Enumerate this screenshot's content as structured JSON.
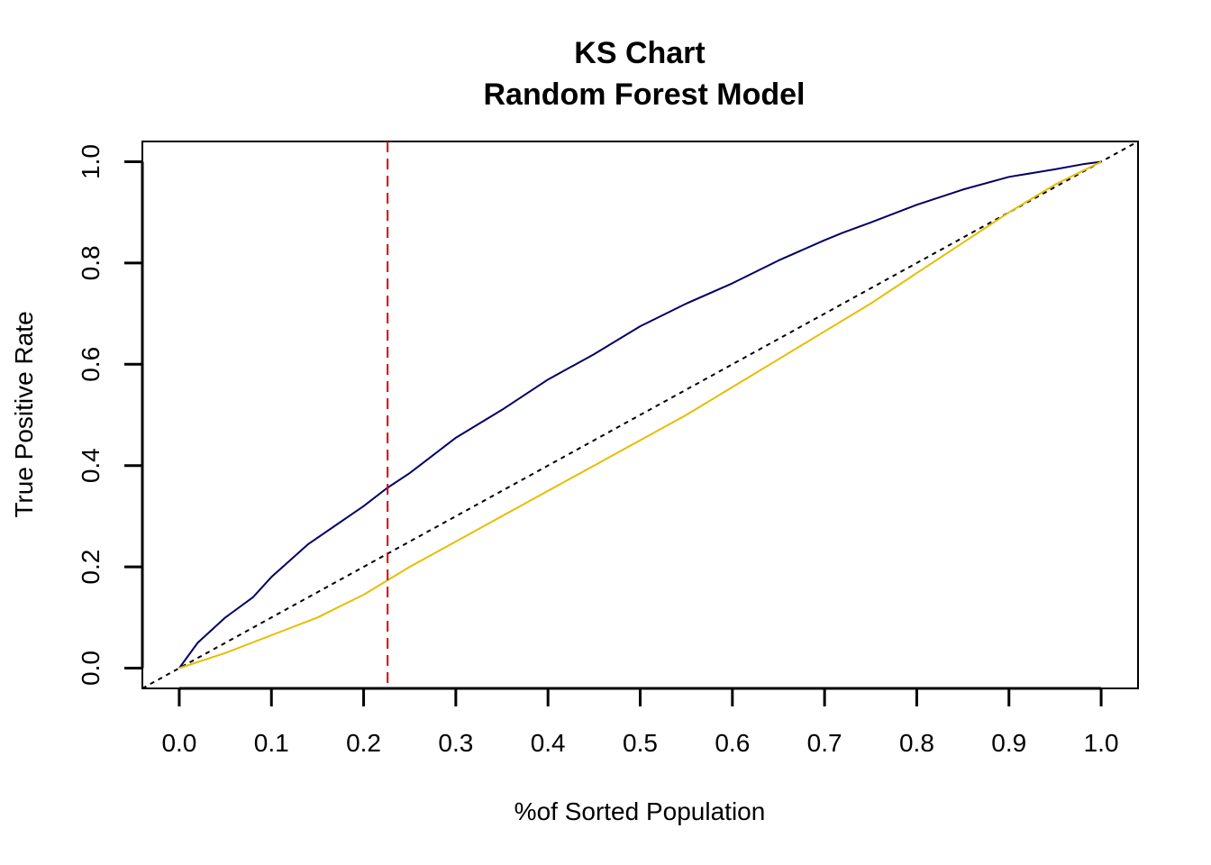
{
  "chart_data": {
    "type": "line",
    "title": "KS Chart",
    "subtitle": "Random Forest Model",
    "xlabel": "%of Sorted Population",
    "ylabel": "True Positive Rate",
    "xlim": [
      -0.04,
      1.04
    ],
    "ylim": [
      -0.04,
      1.04
    ],
    "x_ticks": [
      0.0,
      0.1,
      0.2,
      0.3,
      0.4,
      0.5,
      0.6,
      0.7,
      0.8,
      0.9,
      1.0
    ],
    "x_tick_labels": [
      "0.0",
      "0.1",
      "0.2",
      "0.3",
      "0.4",
      "0.5",
      "0.6",
      "0.7",
      "0.8",
      "0.9",
      "1.0"
    ],
    "y_ticks": [
      0.0,
      0.2,
      0.4,
      0.6,
      0.8,
      1.0
    ],
    "y_tick_labels": [
      "0.0",
      "0.2",
      "0.4",
      "0.6",
      "0.8",
      "1.0"
    ],
    "grid": false,
    "legend": "none",
    "series": [
      {
        "color": "#000066",
        "x": [
          0.0,
          0.02,
          0.05,
          0.08,
          0.1,
          0.14,
          0.2,
          0.225,
          0.25,
          0.3,
          0.35,
          0.4,
          0.45,
          0.5,
          0.55,
          0.6,
          0.65,
          0.7,
          0.72,
          0.75,
          0.8,
          0.85,
          0.9,
          0.95,
          0.98,
          1.0
        ],
        "y": [
          0.0,
          0.05,
          0.1,
          0.14,
          0.18,
          0.245,
          0.32,
          0.355,
          0.385,
          0.455,
          0.51,
          0.57,
          0.62,
          0.675,
          0.72,
          0.76,
          0.805,
          0.845,
          0.86,
          0.88,
          0.915,
          0.945,
          0.97,
          0.985,
          0.995,
          1.0
        ]
      },
      {
        "color": "#E6BE00",
        "x": [
          0.0,
          0.05,
          0.1,
          0.15,
          0.2,
          0.25,
          0.3,
          0.35,
          0.4,
          0.45,
          0.5,
          0.55,
          0.6,
          0.65,
          0.7,
          0.75,
          0.8,
          0.85,
          0.9,
          0.95,
          1.0
        ],
        "y": [
          0.0,
          0.03,
          0.065,
          0.1,
          0.145,
          0.2,
          0.25,
          0.3,
          0.35,
          0.4,
          0.45,
          0.5,
          0.555,
          0.61,
          0.665,
          0.72,
          0.78,
          0.84,
          0.9,
          0.955,
          1.0
        ]
      }
    ],
    "reference_line": {
      "x": [
        -0.04,
        1.04
      ],
      "y": [
        -0.04,
        1.04
      ],
      "color": "#000000",
      "style": "dotted"
    },
    "ks_line": {
      "x": 0.226,
      "color": "#DD0000",
      "style": "dashed"
    }
  }
}
